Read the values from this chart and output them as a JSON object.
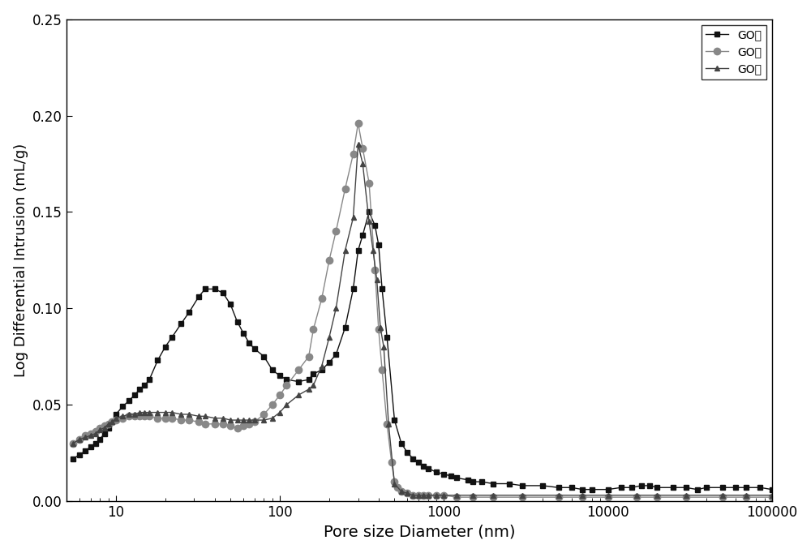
{
  "title": "",
  "xlabel": "Pore size Diameter (nm)",
  "ylabel": "Log Differential Intrusion (mL/g)",
  "xlim_log": [
    5,
    100000
  ],
  "ylim": [
    0,
    0.25
  ],
  "yticks": [
    0.0,
    0.05,
    0.1,
    0.15,
    0.2,
    0.25
  ],
  "legend_labels": [
    "GO上",
    "GO中",
    "GO下"
  ],
  "series_colors": [
    "#111111",
    "#888888",
    "#444444"
  ],
  "series_markers": [
    "s",
    "o",
    "^"
  ],
  "series_markersizes": [
    5,
    6,
    5
  ],
  "GO_shang_x": [
    5.5,
    6,
    6.5,
    7,
    7.5,
    8,
    8.5,
    9,
    9.5,
    10,
    11,
    12,
    13,
    14,
    15,
    16,
    18,
    20,
    22,
    25,
    28,
    32,
    35,
    40,
    45,
    50,
    55,
    60,
    65,
    70,
    80,
    90,
    100,
    110,
    130,
    150,
    160,
    180,
    200,
    220,
    250,
    280,
    300,
    320,
    350,
    380,
    400,
    420,
    450,
    500,
    550,
    600,
    650,
    700,
    750,
    800,
    900,
    1000,
    1100,
    1200,
    1400,
    1500,
    1700,
    2000,
    2500,
    3000,
    4000,
    5000,
    6000,
    7000,
    8000,
    10000,
    12000,
    14000,
    16000,
    18000,
    20000,
    25000,
    30000,
    35000,
    40000,
    50000,
    60000,
    70000,
    85000,
    100000
  ],
  "GO_shang_y": [
    0.022,
    0.024,
    0.026,
    0.028,
    0.03,
    0.032,
    0.035,
    0.038,
    0.041,
    0.045,
    0.049,
    0.052,
    0.055,
    0.058,
    0.06,
    0.063,
    0.073,
    0.08,
    0.085,
    0.092,
    0.098,
    0.106,
    0.11,
    0.11,
    0.108,
    0.102,
    0.093,
    0.087,
    0.082,
    0.079,
    0.075,
    0.068,
    0.065,
    0.063,
    0.062,
    0.063,
    0.066,
    0.068,
    0.072,
    0.076,
    0.09,
    0.11,
    0.13,
    0.138,
    0.15,
    0.143,
    0.133,
    0.11,
    0.085,
    0.042,
    0.03,
    0.025,
    0.022,
    0.02,
    0.018,
    0.017,
    0.015,
    0.014,
    0.013,
    0.012,
    0.011,
    0.01,
    0.01,
    0.009,
    0.009,
    0.008,
    0.008,
    0.007,
    0.007,
    0.006,
    0.006,
    0.006,
    0.007,
    0.007,
    0.008,
    0.008,
    0.007,
    0.007,
    0.007,
    0.006,
    0.007,
    0.007,
    0.007,
    0.007,
    0.007,
    0.006
  ],
  "GO_zhong_x": [
    5.5,
    6,
    6.5,
    7,
    7.5,
    8,
    8.5,
    9,
    9.5,
    10,
    11,
    12,
    13,
    14,
    15,
    16,
    18,
    20,
    22,
    25,
    28,
    32,
    35,
    40,
    45,
    50,
    55,
    60,
    65,
    70,
    80,
    90,
    100,
    110,
    130,
    150,
    160,
    180,
    200,
    220,
    250,
    280,
    300,
    320,
    350,
    380,
    400,
    420,
    450,
    480,
    500,
    520,
    550,
    600,
    650,
    700,
    750,
    800,
    900,
    1000,
    1200,
    1500,
    2000,
    3000,
    5000,
    7000,
    10000,
    15000,
    20000,
    30000,
    50000,
    70000,
    100000
  ],
  "GO_zhong_y": [
    0.03,
    0.032,
    0.034,
    0.035,
    0.036,
    0.038,
    0.039,
    0.04,
    0.041,
    0.042,
    0.043,
    0.044,
    0.044,
    0.044,
    0.044,
    0.044,
    0.043,
    0.043,
    0.043,
    0.042,
    0.042,
    0.041,
    0.04,
    0.04,
    0.04,
    0.039,
    0.038,
    0.039,
    0.04,
    0.041,
    0.045,
    0.05,
    0.055,
    0.06,
    0.068,
    0.075,
    0.089,
    0.105,
    0.125,
    0.14,
    0.162,
    0.18,
    0.196,
    0.183,
    0.165,
    0.12,
    0.089,
    0.068,
    0.04,
    0.02,
    0.01,
    0.007,
    0.005,
    0.004,
    0.003,
    0.003,
    0.003,
    0.003,
    0.003,
    0.003,
    0.002,
    0.002,
    0.002,
    0.002,
    0.002,
    0.002,
    0.002,
    0.002,
    0.002,
    0.002,
    0.002,
    0.002,
    0.002
  ],
  "GO_xia_x": [
    5.5,
    6,
    6.5,
    7,
    7.5,
    8,
    8.5,
    9,
    9.5,
    10,
    11,
    12,
    13,
    14,
    15,
    16,
    18,
    20,
    22,
    25,
    28,
    32,
    35,
    40,
    45,
    50,
    55,
    60,
    65,
    70,
    80,
    90,
    100,
    110,
    130,
    150,
    160,
    180,
    200,
    220,
    250,
    280,
    300,
    320,
    350,
    370,
    390,
    410,
    430,
    460,
    500,
    550,
    600,
    650,
    700,
    750,
    800,
    900,
    1000,
    1200,
    1500,
    2000,
    3000,
    5000,
    7000,
    10000,
    15000,
    20000,
    30000,
    50000,
    70000,
    100000
  ],
  "GO_xia_y": [
    0.03,
    0.032,
    0.033,
    0.034,
    0.035,
    0.037,
    0.038,
    0.04,
    0.041,
    0.043,
    0.044,
    0.045,
    0.045,
    0.046,
    0.046,
    0.046,
    0.046,
    0.046,
    0.046,
    0.045,
    0.045,
    0.044,
    0.044,
    0.043,
    0.043,
    0.042,
    0.042,
    0.042,
    0.042,
    0.042,
    0.042,
    0.043,
    0.046,
    0.05,
    0.055,
    0.058,
    0.06,
    0.07,
    0.085,
    0.1,
    0.13,
    0.147,
    0.185,
    0.175,
    0.145,
    0.13,
    0.115,
    0.09,
    0.08,
    0.04,
    0.009,
    0.005,
    0.004,
    0.003,
    0.003,
    0.003,
    0.003,
    0.003,
    0.003,
    0.003,
    0.003,
    0.003,
    0.003,
    0.003,
    0.003,
    0.003,
    0.003,
    0.003,
    0.003,
    0.003,
    0.003,
    0.003
  ]
}
